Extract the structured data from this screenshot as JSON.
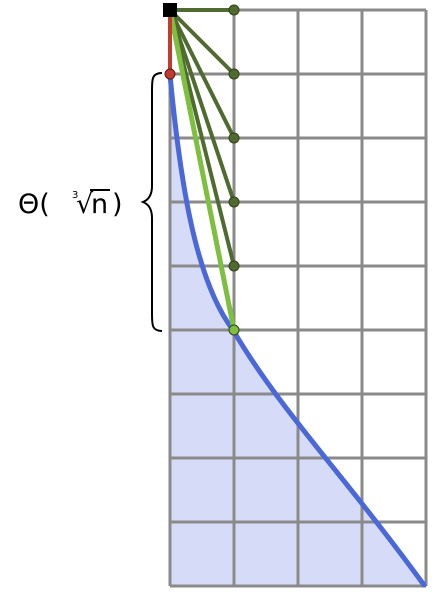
{
  "annotation": {
    "theta": "Θ(",
    "root_index": "3",
    "radical": "√",
    "variable": "n",
    "close": ")"
  },
  "colors": {
    "grid": "#8a8a8a",
    "fill": "#d6dcf7",
    "curve": "#4b68d8",
    "segment_dark": "#4f6b2f",
    "segment_light": "#7fbf3f",
    "segment_red": "#c23b2e",
    "origin": "#000000",
    "brace": "#000000"
  },
  "icons": {
    "origin": "black-square-marker",
    "endpoints": "circle-marker"
  }
}
